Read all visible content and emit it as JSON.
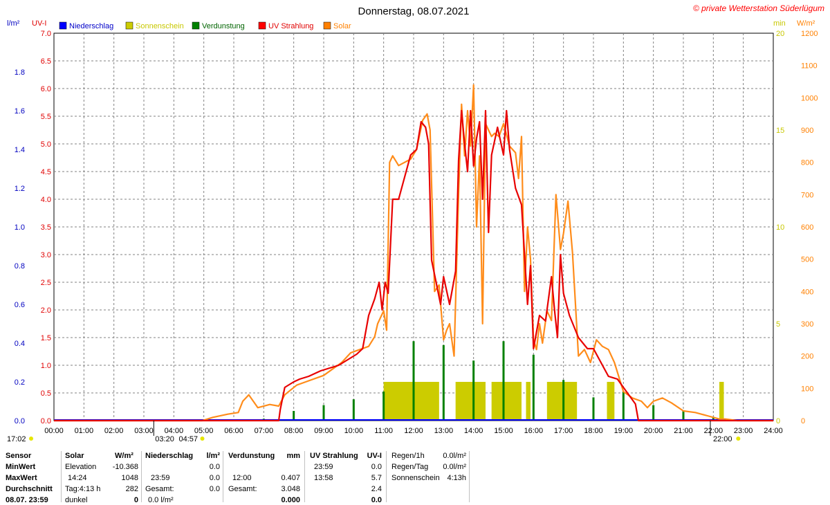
{
  "title": "Donnerstag, 08.07.2021",
  "copyright": "© private Wetterstation Süderlügum",
  "axis_units": {
    "left1": "l/m²",
    "left2": "UV-I",
    "right1": "min",
    "right2": "W/m²"
  },
  "legend": [
    {
      "name": "Niederschlag",
      "color": "#0000ff",
      "text_color": "#0000c8"
    },
    {
      "name": "Sonnenschein",
      "color": "#cccc00",
      "text_color": "#c8c800"
    },
    {
      "name": "Verdunstung",
      "color": "#008000",
      "text_color": "#006400"
    },
    {
      "name": "UV Strahlung",
      "color": "#ff0000",
      "text_color": "#e00000"
    },
    {
      "name": "Solar",
      "color": "#ff8000",
      "text_color": "#ff8000"
    }
  ],
  "colors": {
    "rain": "#0000ff",
    "sunshine": "#cccc00",
    "evaporation": "#008000",
    "uv": "#e80000",
    "solar": "#ff8c1a",
    "grid": "#808080"
  },
  "chart_data": {
    "type": "line",
    "x_range": [
      "00:00",
      "24:00"
    ],
    "x_ticks": [
      "00:00",
      "01:00",
      "02:00",
      "03:00",
      "04:00",
      "05:00",
      "06:00",
      "07:00",
      "08:00",
      "09:00",
      "10:00",
      "11:00",
      "12:00",
      "13:00",
      "14:00",
      "15:00",
      "16:00",
      "17:00",
      "18:00",
      "19:00",
      "20:00",
      "21:00",
      "22:00",
      "23:00",
      "24:00"
    ],
    "y_axes": {
      "rain": {
        "unit": "l/m²",
        "range": [
          0,
          2.0
        ],
        "ticks": [
          "0.0",
          "0.2",
          "0.4",
          "0.6",
          "0.8",
          "1.0",
          "1.2",
          "1.4",
          "1.6",
          "1.8"
        ]
      },
      "uv": {
        "unit": "UV-I",
        "range": [
          0,
          7.0
        ],
        "ticks": [
          "0.0",
          "0.5",
          "1.0",
          "1.5",
          "2.0",
          "2.5",
          "3.0",
          "3.5",
          "4.0",
          "4.5",
          "5.0",
          "5.5",
          "6.0",
          "6.5",
          "7.0"
        ]
      },
      "sunshine": {
        "unit": "min",
        "range": [
          0,
          20
        ],
        "ticks": [
          "0",
          "5",
          "10",
          "15",
          "20"
        ]
      },
      "solar": {
        "unit": "W/m²",
        "range": [
          0,
          1200
        ],
        "ticks": [
          "0",
          "100",
          "200",
          "300",
          "400",
          "500",
          "600",
          "700",
          "800",
          "900",
          "1000",
          "1100",
          "1200"
        ]
      }
    },
    "series": [
      {
        "name": "Solar",
        "axis": "solar",
        "x_hours": [
          0,
          3.3,
          4.95,
          5.3,
          5.8,
          6.15,
          6.3,
          6.5,
          6.8,
          7.2,
          7.5,
          7.7,
          7.9,
          8.1,
          8.4,
          8.7,
          9.0,
          9.3,
          9.6,
          9.9,
          10.2,
          10.5,
          10.7,
          10.8,
          10.9,
          11.0,
          11.1,
          11.2,
          11.3,
          11.5,
          11.7,
          11.9,
          12.1,
          12.3,
          12.45,
          12.55,
          12.7,
          12.85,
          13.0,
          13.1,
          13.2,
          13.35,
          13.5,
          13.6,
          13.7,
          13.8,
          13.9,
          14.0,
          14.1,
          14.2,
          14.3,
          14.4,
          14.5,
          14.6,
          14.7,
          14.85,
          15.0,
          15.2,
          15.4,
          15.5,
          15.6,
          15.7,
          15.8,
          15.9,
          16.0,
          16.1,
          16.2,
          16.3,
          16.45,
          16.6,
          16.75,
          16.9,
          17.0,
          17.15,
          17.3,
          17.5,
          17.7,
          17.9,
          18.1,
          18.3,
          18.5,
          18.7,
          19.0,
          19.3,
          19.6,
          19.8,
          20.0,
          20.3,
          20.6,
          21.0,
          21.4,
          21.8,
          22.2,
          22.4,
          22.8,
          24.0
        ],
        "y": [
          0,
          0,
          0,
          10,
          20,
          25,
          60,
          80,
          40,
          50,
          45,
          80,
          95,
          110,
          120,
          130,
          140,
          160,
          180,
          210,
          220,
          230,
          260,
          300,
          320,
          340,
          280,
          800,
          820,
          790,
          800,
          810,
          840,
          930,
          950,
          900,
          400,
          420,
          250,
          280,
          300,
          200,
          700,
          980,
          820,
          960,
          850,
          1040,
          600,
          820,
          300,
          920,
          900,
          880,
          890,
          880,
          920,
          850,
          830,
          750,
          880,
          400,
          600,
          500,
          250,
          220,
          300,
          240,
          340,
          310,
          700,
          530,
          580,
          680,
          520,
          200,
          220,
          180,
          250,
          230,
          220,
          180,
          90,
          70,
          60,
          40,
          60,
          70,
          55,
          30,
          25,
          15,
          5,
          5,
          0,
          0
        ]
      },
      {
        "name": "UV Strahlung",
        "axis": "uv",
        "x_hours": [
          0,
          7.5,
          7.55,
          7.7,
          8.0,
          8.2,
          8.5,
          8.9,
          9.2,
          9.5,
          9.8,
          10.1,
          10.3,
          10.5,
          10.7,
          10.85,
          10.95,
          11.05,
          11.15,
          11.3,
          11.5,
          11.7,
          11.9,
          12.1,
          12.25,
          12.4,
          12.5,
          12.6,
          12.75,
          12.9,
          13.0,
          13.2,
          13.4,
          13.5,
          13.6,
          13.7,
          13.8,
          13.9,
          14.0,
          14.1,
          14.2,
          14.3,
          14.4,
          14.5,
          14.6,
          14.8,
          15.0,
          15.1,
          15.2,
          15.4,
          15.6,
          15.8,
          15.9,
          16.0,
          16.2,
          16.4,
          16.6,
          16.7,
          16.8,
          16.9,
          17.0,
          17.2,
          17.5,
          17.8,
          18.0,
          18.3,
          18.5,
          18.8,
          19.0,
          19.2,
          19.4,
          19.5,
          24.0
        ],
        "y": [
          0,
          0,
          0.2,
          0.6,
          0.7,
          0.75,
          0.8,
          0.9,
          0.95,
          1.0,
          1.1,
          1.2,
          1.3,
          1.9,
          2.2,
          2.5,
          2.0,
          2.5,
          2.3,
          4.0,
          4.0,
          4.4,
          4.8,
          4.9,
          5.4,
          5.3,
          5.0,
          2.9,
          2.5,
          2.1,
          2.6,
          2.1,
          2.7,
          4.7,
          5.6,
          5.0,
          4.5,
          5.6,
          4.6,
          5.1,
          5.4,
          4.0,
          5.6,
          3.4,
          4.8,
          5.3,
          4.8,
          5.6,
          4.9,
          4.2,
          3.9,
          2.1,
          2.8,
          1.3,
          1.9,
          1.8,
          2.6,
          2.0,
          1.5,
          3.0,
          2.3,
          1.9,
          1.5,
          1.3,
          1.3,
          1.0,
          0.8,
          0.75,
          0.6,
          0.45,
          0.3,
          0,
          0
        ]
      }
    ],
    "bars": [
      {
        "name": "Sonnenschein",
        "axis": "sunshine",
        "segments": [
          [
            "11.0",
            "12.85"
          ],
          [
            "13.4",
            "14.4"
          ],
          [
            "14.6",
            "15.6"
          ],
          [
            "15.75",
            "15.9"
          ],
          [
            "16.45",
            "17.45"
          ],
          [
            "18.45",
            "18.7"
          ],
          [
            "22.2",
            "22.35"
          ]
        ]
      },
      {
        "name": "Verdunstung",
        "axis": "rain",
        "x_hours": [
          7.0,
          8.0,
          9.0,
          10.0,
          11.0,
          12.0,
          13.0,
          14.0,
          15.0,
          16.0,
          17.0,
          18.0,
          19.0,
          20.0,
          21.0,
          22.0
        ],
        "y": [
          0.01,
          0.05,
          0.08,
          0.11,
          0.15,
          0.41,
          0.39,
          0.31,
          0.41,
          0.34,
          0.21,
          0.12,
          0.15,
          0.08,
          0.05,
          0.02
        ]
      }
    ]
  },
  "time_markers": {
    "left": "17:02",
    "sunrise1": "03:20",
    "sunrise2": "04:57",
    "sunset": "22:00"
  },
  "stats": {
    "sensor": {
      "h": "Sensor",
      "min": "MinWert",
      "max": "MaxWert",
      "avg": "Durchschnitt",
      "last": "08.07. 23:59"
    },
    "solar": {
      "h": "Solar",
      "unit": "W/m²",
      "min_l": "Elevation",
      "min_v": "-10.368",
      "max_l": "14:24",
      "max_v": "1048",
      "avg_l": "Tag:4:13 h",
      "avg_v": "282",
      "last_l": "dunkel",
      "last_v": "0"
    },
    "rain": {
      "h": "Niederschlag",
      "unit": "l/m²",
      "min_v": "0.0",
      "max_l": "23:59",
      "max_v": "0.0",
      "avg_l": "Gesamt:",
      "avg_v": "0.0",
      "last_l": "0.0 l/m²"
    },
    "evap": {
      "h": "Verdunstung",
      "unit": "mm",
      "max_l": "12:00",
      "max_v": "0.407",
      "avg_l": "Gesamt:",
      "avg_v": "3.048",
      "last_v": "0.000"
    },
    "uv": {
      "h": "UV Strahlung",
      "unit": "UV-I",
      "min_l": "23:59",
      "min_v": "0.0",
      "max_l": "13:58",
      "max_v": "5.7",
      "avg_v": "2.4",
      "last_v": "0.0"
    },
    "extra": {
      "r1_l": "Regen/1h",
      "r1_v": "0.0l/m²",
      "r2_l": "Regen/Tag",
      "r2_v": "0.0l/m²",
      "r3_l": "Sonnenschein",
      "r3_v": "4:13h"
    }
  }
}
